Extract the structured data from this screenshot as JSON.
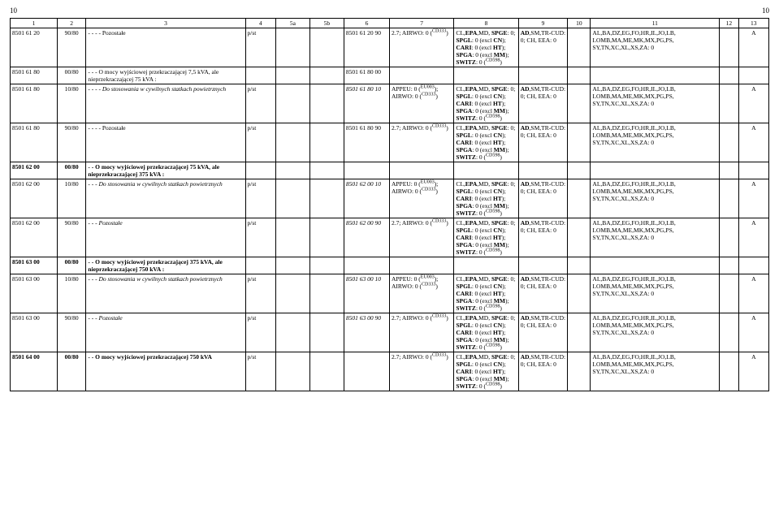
{
  "page_num_left": "10",
  "page_num_right": "10",
  "col_widths_pct": [
    6.2,
    3.8,
    21.0,
    4.0,
    4.5,
    4.5,
    6.0,
    8.5,
    8.5,
    6.5,
    3.0,
    17.0,
    2.5,
    4.0
  ],
  "headers": [
    "1",
    "2",
    "3",
    "4",
    "5a",
    "5b",
    "6",
    "7",
    "8",
    "9",
    "10",
    "11",
    "12",
    "13"
  ],
  "rows": [
    {
      "c1": "8501 61 20",
      "c2": "90/80",
      "c3": "- - - - Pozostałe",
      "c4": "p/st",
      "c5a": "",
      "c5b": "",
      "c6": "8501 61 20 90",
      "c7": "2.7; AIRWO: 0 (<sup>CD333</sup>)",
      "c8": "CL,<b>EPA</b>,MD, <b>SPGE</b>: 0; <b>SPGL</b>: 0 (excl <b>CN</b>); <b>CARI</b>: 0 (excl <b>HT</b>); <b>SPGA</b>: 0 (excl <b>MM</b>); <b>SWITZ</b>: 0 (<sup>CD598</sup>)",
      "c9": "<b>AD</b>,SM,TR-CUD: 0; CH, EEA: 0",
      "c10": "",
      "c11": "AL,BA,DZ,EG,FO,HR,IL,JO,LB, LOMB,MA,ME,MK,MX,PG,PS, SY,TN,XC,XL,XS,ZA: 0",
      "c12": "",
      "c13": "A"
    },
    {
      "c1": "8501 61 80",
      "c2": "00/80",
      "c3": "- - - O mocy wyjściowej przekraczającej 7,5 kVA, ale nieprzekraczającej 75 kVA :",
      "c4": "",
      "c5a": "",
      "c5b": "",
      "c6": "8501 61 80 00",
      "c7": "",
      "c8": "",
      "c9": "",
      "c10": "",
      "c11": "",
      "c12": "",
      "c13": ""
    },
    {
      "c1": "8501 61 80",
      "c2": "10/80",
      "c3": "- - - - <i>Do stosowania w cywilnych statkach powietrznych</i>",
      "c4": "p/st",
      "c5a": "",
      "c5b": "",
      "c6": "<i>8501 61 80 10</i>",
      "c7": "APPEU: 0 (<sup>EU003</sup>); AIRWO: 0 (<sup>CD333</sup>)",
      "c8": "CL,<b>EPA</b>,MD, <b>SPGE</b>: 0; <b>SPGL</b>: 0 (excl <b>CN</b>); <b>CARI</b>: 0 (excl <b>HT</b>); <b>SPGA</b>: 0 (excl <b>MM</b>); <b>SWITZ</b>: 0 (<sup>CD598</sup>)",
      "c9": "<b>AD</b>,SM,TR-CUD: 0; CH, EEA: 0",
      "c10": "",
      "c11": "AL,BA,DZ,EG,FO,HR,IL,JO,LB, LOMB,MA,ME,MK,MX,PG,PS, SY,TN,XC,XL,XS,ZA: 0",
      "c12": "",
      "c13": "A"
    },
    {
      "c1": "8501 61 80",
      "c2": "90/80",
      "c3": "- - - - Pozostałe",
      "c4": "p/st",
      "c5a": "",
      "c5b": "",
      "c6": "8501 61 80 90",
      "c7": "2.7; AIRWO: 0 (<sup>CD333</sup>)",
      "c8": "CL,<b>EPA</b>,MD, <b>SPGE</b>: 0; <b>SPGL</b>: 0 (excl <b>CN</b>); <b>CARI</b>: 0 (excl <b>HT</b>); <b>SPGA</b>: 0 (excl <b>MM</b>); <b>SWITZ</b>: 0 (<sup>CD598</sup>)",
      "c9": "<b>AD</b>,SM,TR-CUD: 0; CH, EEA: 0",
      "c10": "",
      "c11": "AL,BA,DZ,EG,FO,HR,IL,JO,LB, LOMB,MA,ME,MK,MX,PG,PS, SY,TN,XC,XL,XS,ZA: 0",
      "c12": "",
      "c13": "A"
    },
    {
      "c1": "<b>8501 62 00</b>",
      "c2": "<b>00/80</b>",
      "c3": "<b>- - O mocy wyjściowej przekraczającej 75 kVA, ale nieprzekraczającej 375 kVA :</b>",
      "c4": "",
      "c5a": "",
      "c5b": "",
      "c6": "",
      "c7": "",
      "c8": "",
      "c9": "",
      "c10": "",
      "c11": "",
      "c12": "",
      "c13": ""
    },
    {
      "c1": "8501 62 00",
      "c2": "10/80",
      "c3": "- - - <i>Do stosowania w cywilnych statkach powietrznych</i>",
      "c4": "p/st",
      "c5a": "",
      "c5b": "",
      "c6": "<i>8501 62 00 10</i>",
      "c7": "APPEU: 0 (<sup>EU003</sup>); AIRWO: 0 (<sup>CD333</sup>)",
      "c8": "CL,<b>EPA</b>,MD, <b>SPGE</b>: 0; <b>SPGL</b>: 0 (excl <b>CN</b>); <b>CARI</b>: 0 (excl <b>HT</b>); <b>SPGA</b>: 0 (excl <b>MM</b>); <b>SWITZ</b>: 0 (<sup>CD598</sup>)",
      "c9": "<b>AD</b>,SM,TR-CUD: 0; CH, EEA: 0",
      "c10": "",
      "c11": "AL,BA,DZ,EG,FO,HR,IL,JO,LB, LOMB,MA,ME,MK,MX,PG,PS, SY,TN,XC,XL,XS,ZA: 0",
      "c12": "",
      "c13": "A"
    },
    {
      "c1": "8501 62 00",
      "c2": "90/80",
      "c3": "- - - <i>Pozostałe</i>",
      "c4": "p/st",
      "c5a": "",
      "c5b": "",
      "c6": "<i>8501 62 00 90</i>",
      "c7": "2.7; AIRWO: 0 (<sup>CD333</sup>)",
      "c8": "CL,<b>EPA</b>,MD, <b>SPGE</b>: 0; <b>SPGL</b>: 0 (excl <b>CN</b>); <b>CARI</b>: 0 (excl <b>HT</b>); <b>SPGA</b>: 0 (excl <b>MM</b>); <b>SWITZ</b>: 0 (<sup>CD598</sup>)",
      "c9": "<b>AD</b>,SM,TR-CUD: 0; CH, EEA: 0",
      "c10": "",
      "c11": "AL,BA,DZ,EG,FO,HR,IL,JO,LB, LOMB,MA,ME,MK,MX,PG,PS, SY,TN,XC,XL,XS,ZA: 0",
      "c12": "",
      "c13": "A"
    },
    {
      "c1": "<b>8501 63 00</b>",
      "c2": "<b>00/80</b>",
      "c3": "<b>- - O mocy wyjściowej przekraczającej 375 kVA, ale nieprzekraczającej 750 kVA :</b>",
      "c4": "",
      "c5a": "",
      "c5b": "",
      "c6": "",
      "c7": "",
      "c8": "",
      "c9": "",
      "c10": "",
      "c11": "",
      "c12": "",
      "c13": ""
    },
    {
      "c1": "8501 63 00",
      "c2": "10/80",
      "c3": "- - - <i>Do stosowania w cywilnych statkach powietrznych</i>",
      "c4": "p/st",
      "c5a": "",
      "c5b": "",
      "c6": "<i>8501 63 00 10</i>",
      "c7": "APPEU: 0 (<sup>EU003</sup>); AIRWO: 0 (<sup>CD333</sup>)",
      "c8": "CL,<b>EPA</b>,MD, <b>SPGE</b>: 0; <b>SPGL</b>: 0 (excl <b>CN</b>); <b>CARI</b>: 0 (excl <b>HT</b>); <b>SPGA</b>: 0 (excl <b>MM</b>); <b>SWITZ</b>: 0 (<sup>CD598</sup>)",
      "c9": "<b>AD</b>,SM,TR-CUD: 0; CH, EEA: 0",
      "c10": "",
      "c11": "AL,BA,DZ,EG,FO,HR,IL,JO,LB, LOMB,MA,ME,MK,MX,PG,PS, SY,TN,XC,XL,XS,ZA: 0",
      "c12": "",
      "c13": "A"
    },
    {
      "c1": "8501 63 00",
      "c2": "90/80",
      "c3": "- - - <i>Pozostałe</i>",
      "c4": "p/st",
      "c5a": "",
      "c5b": "",
      "c6": "<i>8501 63 00 90</i>",
      "c7": "2.7; AIRWO: 0 (<sup>CD333</sup>)",
      "c8": "CL,<b>EPA</b>,MD, <b>SPGE</b>: 0; <b>SPGL</b>: 0 (excl <b>CN</b>); <b>CARI</b>: 0 (excl <b>HT</b>); <b>SPGA</b>: 0 (excl <b>MM</b>); <b>SWITZ</b>: 0 (<sup>CD598</sup>)",
      "c9": "<b>AD</b>,SM,TR-CUD: 0; CH, EEA: 0",
      "c10": "",
      "c11": "AL,BA,DZ,EG,FO,HR,IL,JO,LB, LOMB,MA,ME,MK,MX,PG,PS, SY,TN,XC,XL,XS,ZA: 0",
      "c12": "",
      "c13": "A"
    },
    {
      "c1": "<b>8501 64 00</b>",
      "c2": "<b>00/80</b>",
      "c3": "<b>- - O mocy wyjściowej przekraczającej 750 kVA</b>",
      "c4": "p/st",
      "c5a": "",
      "c5b": "",
      "c6": "",
      "c7": "2.7; AIRWO: 0 (<sup>CD333</sup>)",
      "c8": "CL,<b>EPA</b>,MD, <b>SPGE</b>: 0; <b>SPGL</b>: 0 (excl <b>CN</b>); <b>CARI</b>: 0 (excl <b>HT</b>); <b>SPGA</b>: 0 (excl <b>MM</b>); <b>SWITZ</b>: 0 (<sup>CD598</sup>)",
      "c9": "<b>AD</b>,SM,TR-CUD: 0; CH, EEA: 0",
      "c10": "",
      "c11": "AL,BA,DZ,EG,FO,HR,IL,JO,LB, LOMB,MA,ME,MK,MX,PG,PS, SY,TN,XC,XL,XS,ZA: 0",
      "c12": "",
      "c13": "A"
    }
  ]
}
